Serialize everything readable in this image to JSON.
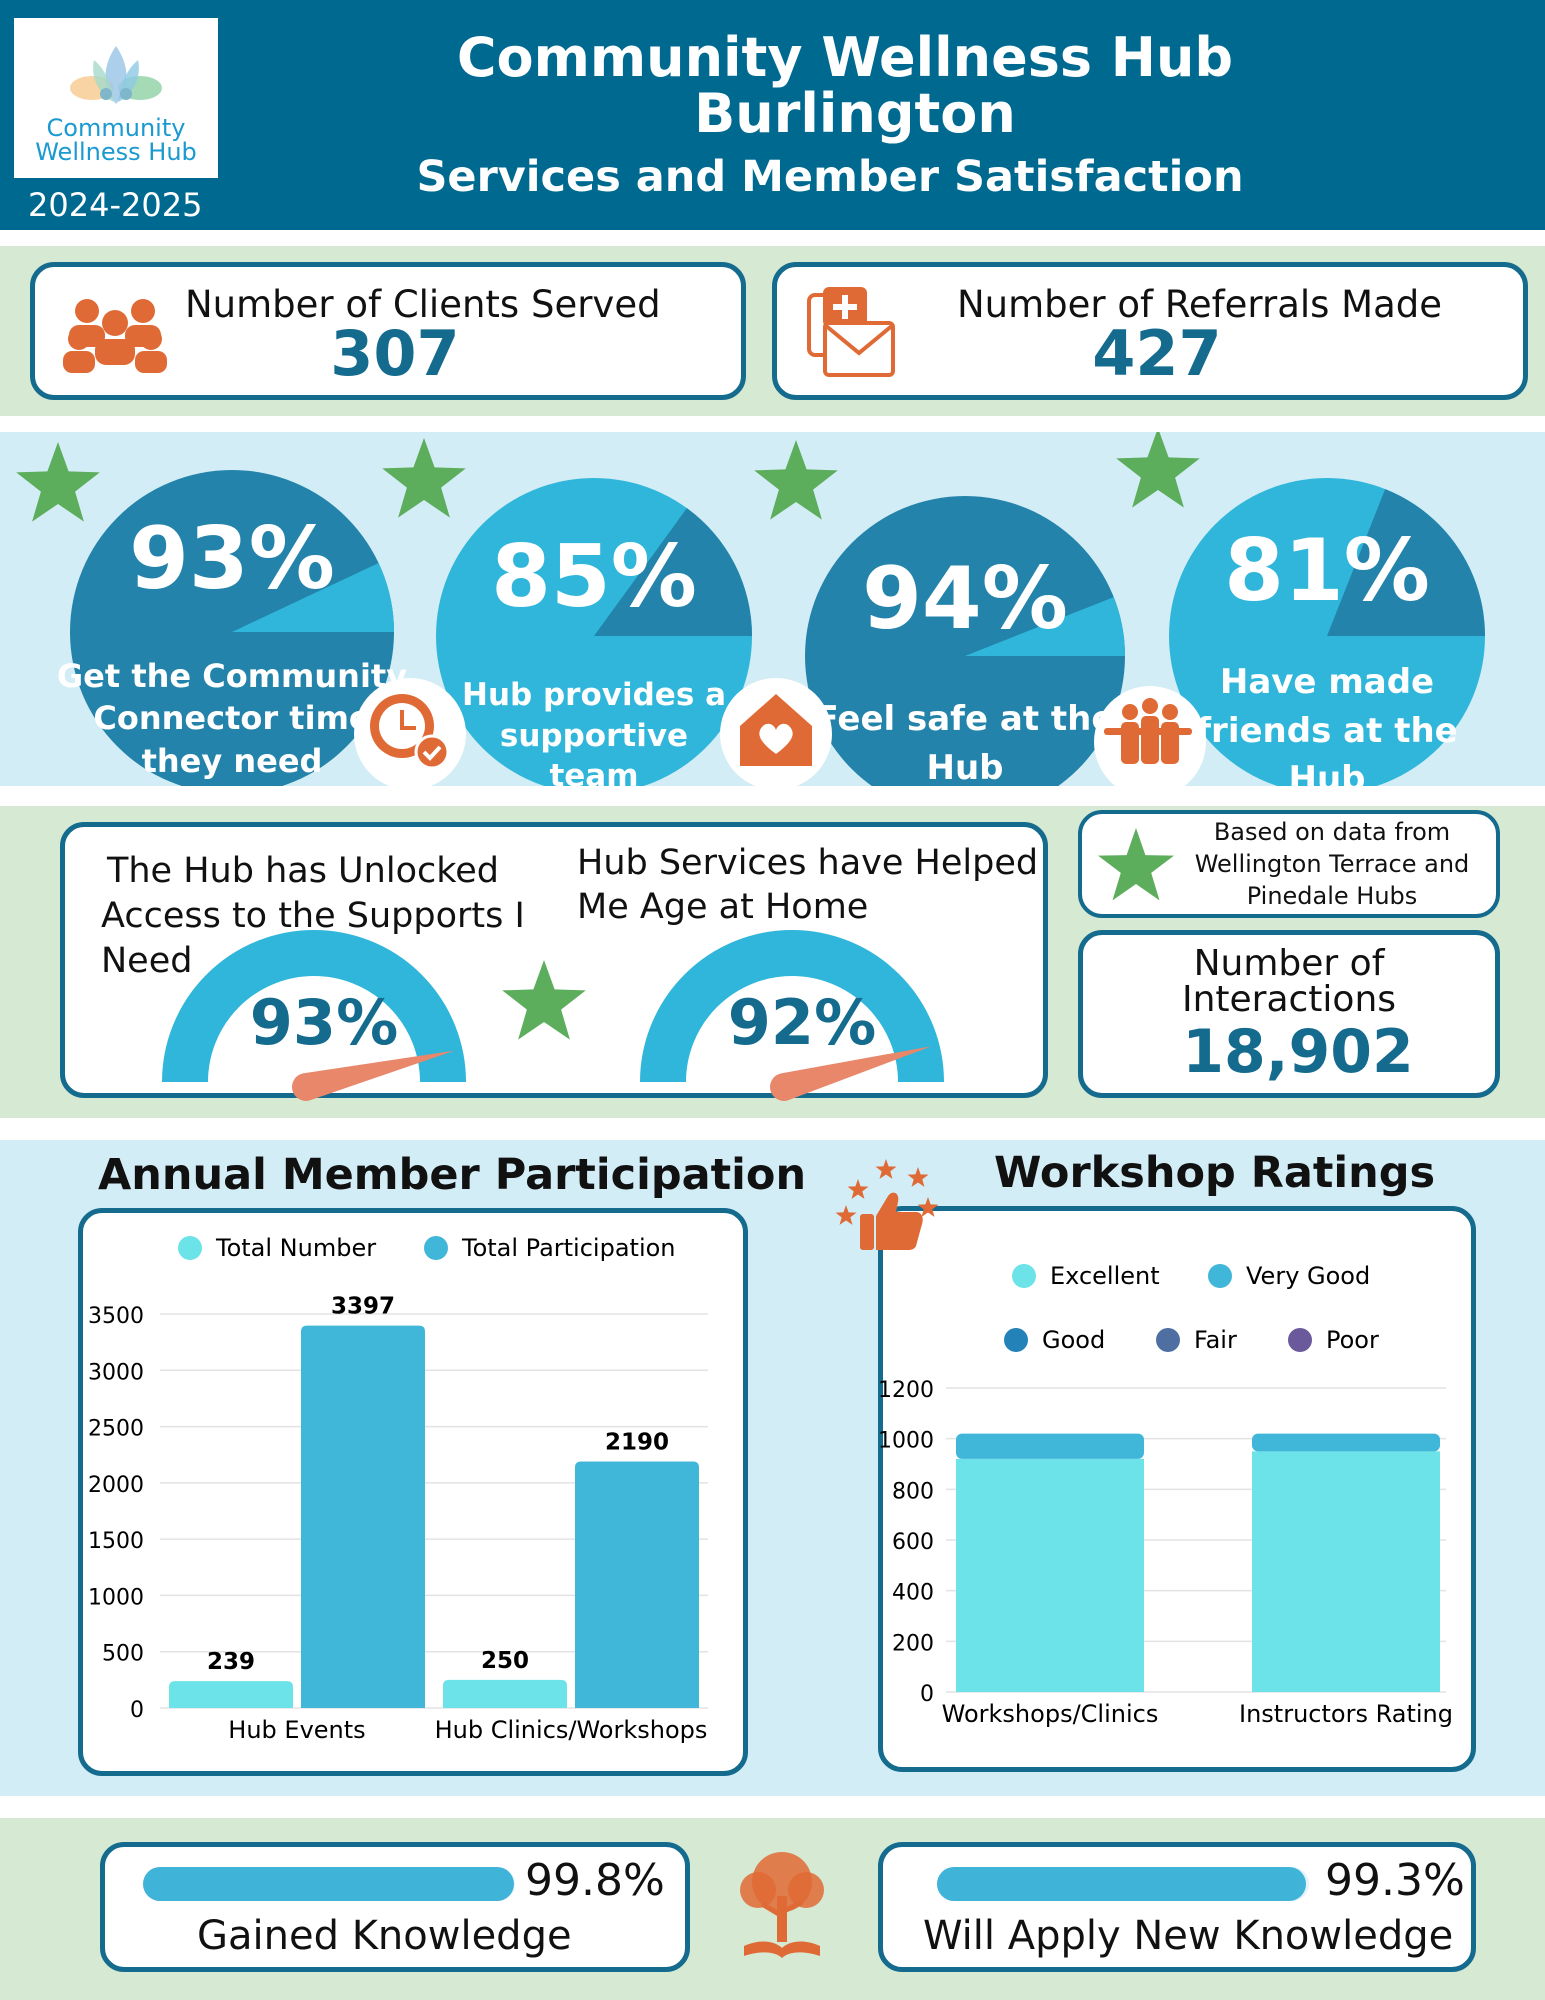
{
  "header": {
    "title_line1": "Community Wellness Hub",
    "title_line2": "Burlington",
    "subtitle": "Services and Member Satisfaction",
    "year": "2024-2025",
    "logo_line1": "Community",
    "logo_line2": "Wellness Hub"
  },
  "stats": {
    "clients_label": "Number of Clients Served",
    "clients_value": "307",
    "referrals_label": "Number of Referrals Made",
    "referrals_value": "427"
  },
  "pies": [
    {
      "value": 93,
      "pct": "93%",
      "line1": "Get the Community",
      "line2": "Connector time",
      "line3": "they need"
    },
    {
      "value": 85,
      "pct": "85%",
      "line1": "Hub provides a",
      "line2": "supportive",
      "line3": "team"
    },
    {
      "value": 94,
      "pct": "94%",
      "line1": "Feel safe at the",
      "line2": "Hub",
      "line3": ""
    },
    {
      "value": 81,
      "pct": "81%",
      "line1": "Have made",
      "line2": "friends at the",
      "line3": "Hub"
    }
  ],
  "gauges": [
    {
      "value": 93,
      "pct": "93%",
      "line1": "The Hub has Unlocked",
      "line2": "Access to the Supports I",
      "line3": "Need"
    },
    {
      "value": 92,
      "pct": "92%",
      "line1": "Hub Services have Helped",
      "line2": "Me Age at Home",
      "line3": ""
    }
  ],
  "note": {
    "line1": "Based on data from",
    "line2": "Wellington Terrace and",
    "line3": "Pinedale Hubs"
  },
  "interactions": {
    "line1": "Number of",
    "line2": "Interactions",
    "value": "18,902"
  },
  "colors": {
    "navy": "#006990",
    "teal_dark": "#2383aa",
    "teal_light": "#2fb6da",
    "orange": "#e06a35",
    "green_star": "#5cad5c",
    "green_band": "#d5e9d3",
    "blue_band": "#d3edf6",
    "bar_light": "#6be3e8",
    "bar_dark": "#40b6d8"
  },
  "chart_data": [
    {
      "type": "bar",
      "title": "Annual Member Participation",
      "categories": [
        "Hub Events",
        "Hub Clinics/Workshops"
      ],
      "series": [
        {
          "name": "Total Number",
          "values": [
            239,
            250
          ]
        },
        {
          "name": "Total Participation",
          "values": [
            3397,
            2190
          ]
        }
      ],
      "ylim": [
        0,
        3500
      ],
      "yticks": [
        "0",
        "500",
        "1000",
        "1500",
        "2000",
        "2500",
        "3000",
        "3500"
      ],
      "data_labels": [
        "239",
        "3397",
        "250",
        "2190"
      ],
      "legend": "top"
    },
    {
      "type": "bar",
      "stacked": true,
      "title": "Workshop Ratings",
      "categories": [
        "Workshops/Clinics",
        "Instructors Rating"
      ],
      "series": [
        {
          "name": "Excellent",
          "values": [
            920,
            950
          ]
        },
        {
          "name": "Very Good",
          "values": [
            100,
            70
          ]
        },
        {
          "name": "Good",
          "values": [
            0,
            0
          ]
        },
        {
          "name": "Fair",
          "values": [
            0,
            0
          ]
        },
        {
          "name": "Poor",
          "values": [
            0,
            0
          ]
        }
      ],
      "ylim": [
        0,
        1200
      ],
      "yticks": [
        "0",
        "200",
        "400",
        "600",
        "800",
        "1000",
        "1200"
      ],
      "legend": "top"
    }
  ],
  "progress": [
    {
      "value": 99.8,
      "pct": "99.8%",
      "label": "Gained Knowledge"
    },
    {
      "value": 99.3,
      "pct": "99.3%",
      "label": "Will Apply New Knowledge"
    }
  ]
}
